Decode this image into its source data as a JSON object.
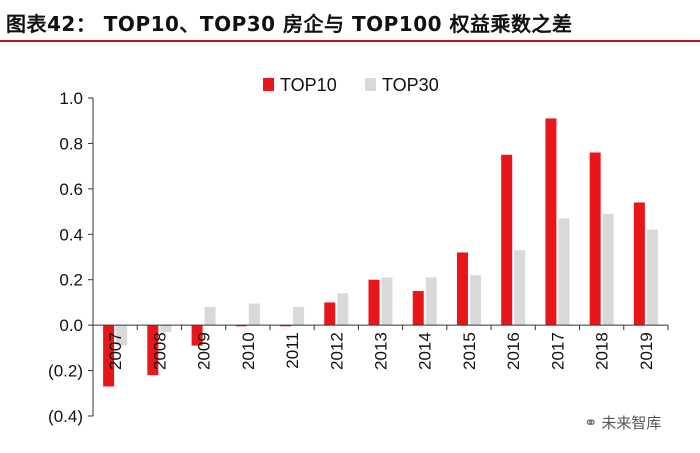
{
  "header": {
    "title": "图表42：  TOP10、TOP30 房企与 TOP100 权益乘数之差",
    "rule_color": "#c0161b"
  },
  "watermark": {
    "icon": "wechat-icon",
    "text": "未来智库"
  },
  "chart_data": {
    "type": "bar",
    "categories": [
      "2007",
      "2008",
      "2009",
      "2010",
      "2011",
      "2012",
      "2013",
      "2014",
      "2015",
      "2016",
      "2017",
      "2018",
      "2019"
    ],
    "series": [
      {
        "name": "TOP10",
        "color": "#e8161b",
        "values": [
          -0.27,
          -0.22,
          -0.09,
          -0.005,
          -0.005,
          0.1,
          0.2,
          0.15,
          0.32,
          0.75,
          0.91,
          0.76,
          0.54
        ]
      },
      {
        "name": "TOP30",
        "color": "#d9d9d9",
        "values": [
          -0.09,
          -0.03,
          0.08,
          0.095,
          0.08,
          0.14,
          0.21,
          0.21,
          0.22,
          0.33,
          0.47,
          0.49,
          0.42
        ]
      }
    ],
    "ylim": [
      -0.4,
      1.0
    ],
    "yticks": [
      1.0,
      0.8,
      0.6,
      0.4,
      0.2,
      0.0,
      -0.2,
      -0.4
    ],
    "ytick_labels": [
      "1.0",
      "0.8",
      "0.6",
      "0.4",
      "0.2",
      "0.0",
      "(0.2)",
      "(0.4)"
    ],
    "xtick_rotation": -90,
    "legend_position": "top",
    "grid": false,
    "xlabel": "",
    "ylabel": ""
  }
}
